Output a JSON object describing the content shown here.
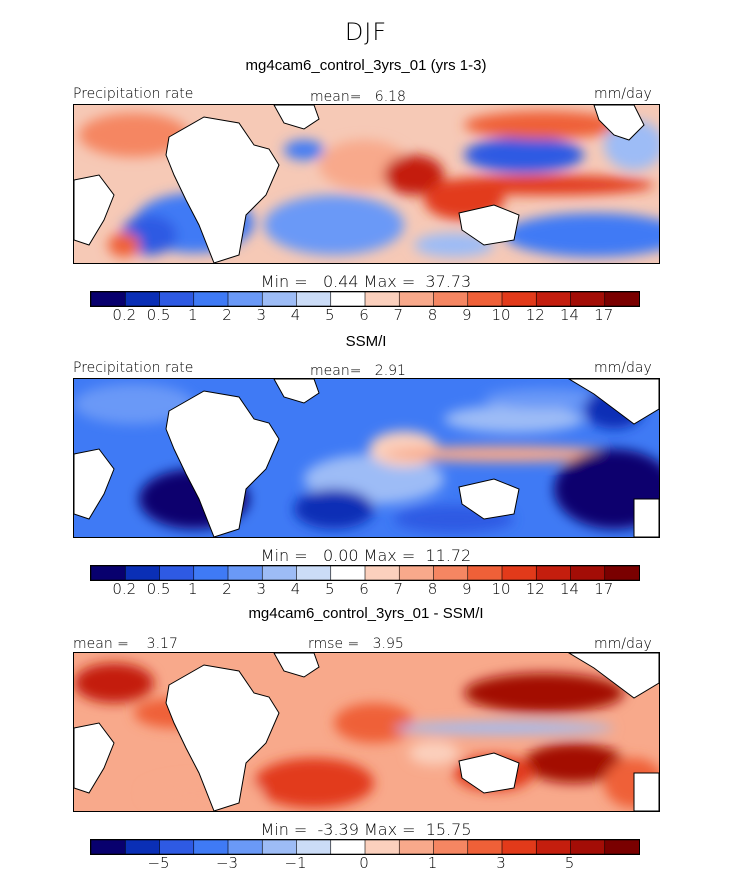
{
  "season": "DJF",
  "palette": [
    "#08006e",
    "#0a2fb6",
    "#2e5ae3",
    "#3f7af5",
    "#6a99f7",
    "#9dbcf6",
    "#cbdcf7",
    "#ffffff",
    "#fbd0bd",
    "#f8a98b",
    "#f58662",
    "#ef6038",
    "#e23a1a",
    "#c41e0e",
    "#a30d06",
    "#7a0000"
  ],
  "panels": [
    {
      "title": "mg4cam6_control_3yrs_01 (yrs 1-3)",
      "left_label": "Precipitation rate",
      "center_label": "mean=   6.18",
      "right_label": "mm/day",
      "minmax": "Min =   0.44 Max =  37.73",
      "ticks": [
        "0.2",
        "0.5",
        "1",
        "2",
        "3",
        "4",
        "5",
        "6",
        "7",
        "8",
        "9",
        "10",
        "12",
        "14",
        "17"
      ]
    },
    {
      "title": "SSM/I",
      "left_label": "Precipitation rate",
      "center_label": "mean=   2.91",
      "right_label": "mm/day",
      "minmax": "Min =   0.00 Max =  11.72",
      "ticks": [
        "0.2",
        "0.5",
        "1",
        "2",
        "3",
        "4",
        "5",
        "6",
        "7",
        "8",
        "9",
        "10",
        "12",
        "14",
        "17"
      ]
    },
    {
      "title": "mg4cam6_control_3yrs_01 - SSM/I",
      "left_label": "mean =    3.17",
      "center_label": "rmse =   3.95",
      "right_label": "mm/day",
      "minmax": "Min =  -3.39 Max =  15.75",
      "ticks": [
        "",
        "-5",
        "",
        "-3",
        "",
        "-1",
        "",
        "0",
        "",
        "1",
        "",
        "3",
        "",
        "5",
        ""
      ]
    }
  ]
}
